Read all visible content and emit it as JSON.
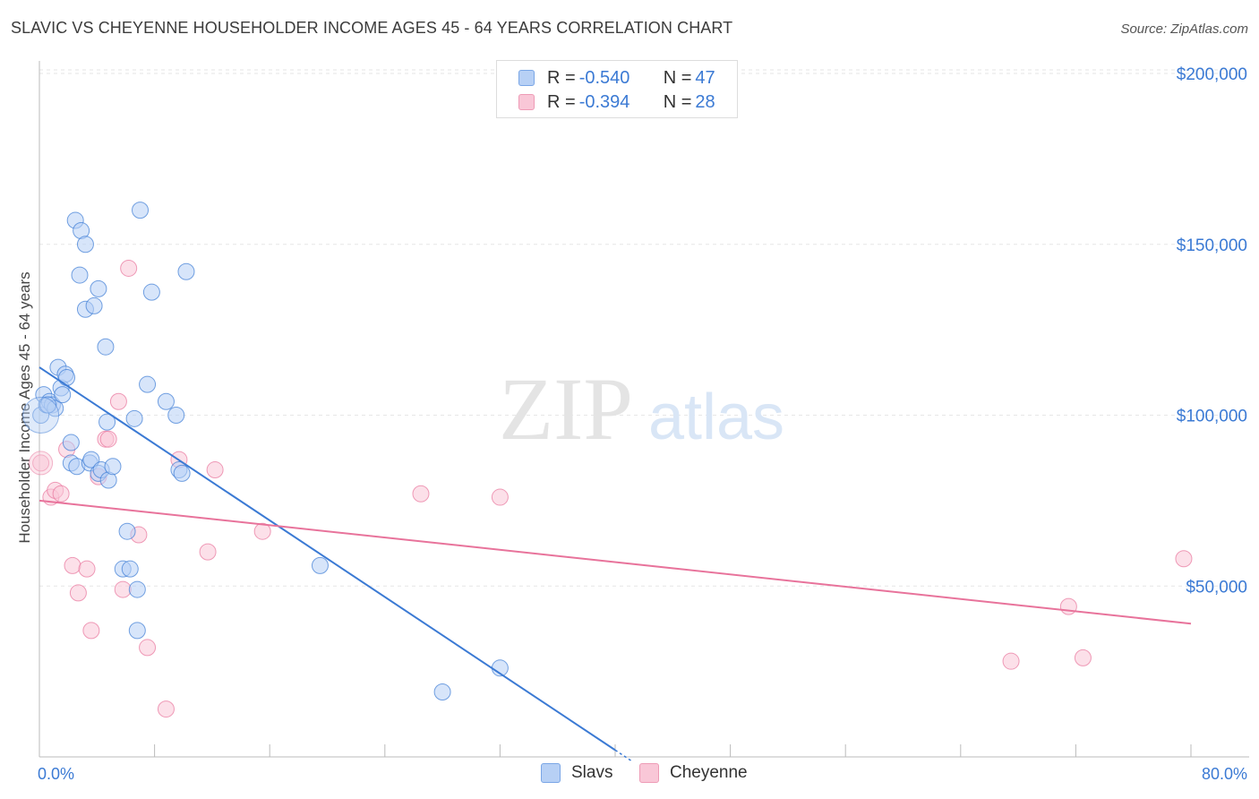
{
  "title": "SLAVIC VS CHEYENNE HOUSEHOLDER INCOME AGES 45 - 64 YEARS CORRELATION CHART",
  "source": "Source: ZipAtlas.com",
  "watermark": {
    "zip": "ZIP",
    "atlas": "atlas"
  },
  "colors": {
    "slavs": "#3b7ad4",
    "slavs_fill": "#b7d0f5",
    "cheyenne": "#e8739b",
    "cheyenne_fill": "#f9c7d7",
    "tick_text": "#3b7ad4"
  },
  "legend": {
    "rows": [
      {
        "r_label": "R = ",
        "r_value": "-0.540",
        "n_label": "N = ",
        "n_value": "47"
      },
      {
        "r_label": "R = ",
        "r_value": "-0.394",
        "n_label": "N = ",
        "n_value": "28"
      }
    ],
    "bottom": [
      "Slavs",
      "Cheyenne"
    ]
  },
  "chart_data": {
    "type": "scatter",
    "title": "SLAVIC VS CHEYENNE HOUSEHOLDER INCOME AGES 45 - 64 YEARS CORRELATION CHART",
    "xlabel": "",
    "ylabel": "Householder Income Ages 45 - 64 years",
    "xlim": [
      0,
      80
    ],
    "ylim": [
      0,
      200000
    ],
    "x_tick_labels": [
      "0.0%",
      "80.0%"
    ],
    "y_ticks": [
      50000,
      100000,
      150000,
      200000
    ],
    "y_tick_labels": [
      "$50,000",
      "$100,000",
      "$150,000",
      "$200,000"
    ],
    "grid": true,
    "legend_position": "top-center",
    "series": [
      {
        "name": "Slavs",
        "r": -0.54,
        "n": 47,
        "trend": {
          "x0": 0,
          "y0": 114000,
          "x1": 40.0,
          "y1": 2000
        },
        "points": [
          [
            0.1,
            100000
          ],
          [
            0.3,
            106000
          ],
          [
            0.5,
            103000
          ],
          [
            0.7,
            104000
          ],
          [
            0.9,
            103000
          ],
          [
            1.1,
            102000
          ],
          [
            1.3,
            114000
          ],
          [
            1.5,
            108000
          ],
          [
            1.6,
            106000
          ],
          [
            1.8,
            112000
          ],
          [
            1.9,
            111000
          ],
          [
            2.2,
            92000
          ],
          [
            2.2,
            86000
          ],
          [
            2.5,
            157000
          ],
          [
            2.6,
            85000
          ],
          [
            2.8,
            141000
          ],
          [
            2.9,
            154000
          ],
          [
            3.2,
            150000
          ],
          [
            3.2,
            131000
          ],
          [
            3.5,
            86000
          ],
          [
            3.6,
            87000
          ],
          [
            3.8,
            132000
          ],
          [
            4.1,
            137000
          ],
          [
            4.1,
            83000
          ],
          [
            4.3,
            84000
          ],
          [
            4.6,
            120000
          ],
          [
            4.7,
            98000
          ],
          [
            4.8,
            81000
          ],
          [
            5.1,
            85000
          ],
          [
            5.8,
            55000
          ],
          [
            6.1,
            66000
          ],
          [
            6.3,
            55000
          ],
          [
            6.6,
            99000
          ],
          [
            6.8,
            49000
          ],
          [
            6.8,
            37000
          ],
          [
            7.0,
            160000
          ],
          [
            7.5,
            109000
          ],
          [
            7.8,
            136000
          ],
          [
            8.8,
            104000
          ],
          [
            9.5,
            100000
          ],
          [
            9.7,
            84000
          ],
          [
            9.9,
            83000
          ],
          [
            10.2,
            142000
          ],
          [
            19.5,
            56000
          ],
          [
            28.0,
            19000
          ],
          [
            32.0,
            26000
          ],
          [
            0.6,
            103000
          ]
        ]
      },
      {
        "name": "Cheyenne",
        "r": -0.394,
        "n": 28,
        "trend": {
          "x0": 0,
          "y0": 75000,
          "x1": 80,
          "y1": 39000
        },
        "points": [
          [
            0.1,
            86000
          ],
          [
            0.8,
            76000
          ],
          [
            1.1,
            78000
          ],
          [
            1.5,
            77000
          ],
          [
            1.9,
            90000
          ],
          [
            2.3,
            56000
          ],
          [
            2.7,
            48000
          ],
          [
            3.3,
            55000
          ],
          [
            3.6,
            37000
          ],
          [
            4.1,
            82000
          ],
          [
            4.6,
            93000
          ],
          [
            4.8,
            93000
          ],
          [
            5.5,
            104000
          ],
          [
            5.8,
            49000
          ],
          [
            6.2,
            143000
          ],
          [
            6.9,
            65000
          ],
          [
            7.5,
            32000
          ],
          [
            8.8,
            14000
          ],
          [
            9.7,
            87000
          ],
          [
            11.7,
            60000
          ],
          [
            12.2,
            84000
          ],
          [
            15.5,
            66000
          ],
          [
            26.5,
            77000
          ],
          [
            32.0,
            76000
          ],
          [
            67.5,
            28000
          ],
          [
            71.5,
            44000
          ],
          [
            72.5,
            29000
          ],
          [
            79.5,
            58000
          ]
        ]
      }
    ]
  }
}
